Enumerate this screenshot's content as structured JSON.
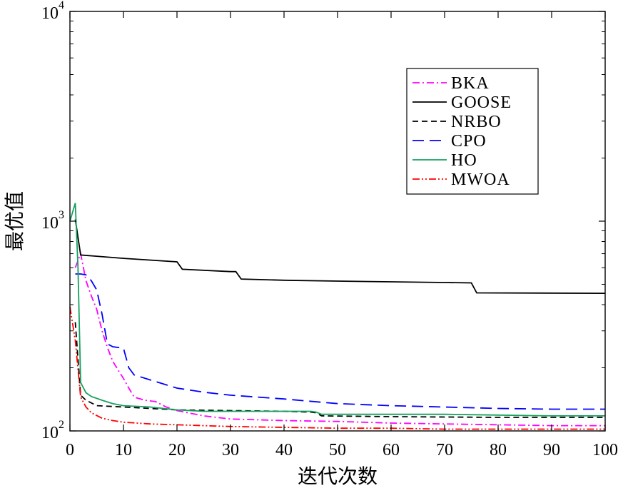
{
  "chart_data": {
    "type": "line",
    "title": "",
    "xlabel": "迭代次数",
    "ylabel": "最优值",
    "xlim": [
      0,
      100
    ],
    "ylim": [
      100,
      10000
    ],
    "yscale": "log",
    "grid": false,
    "legend_position": "top-right",
    "x_ticks": [
      0,
      10,
      20,
      30,
      40,
      50,
      60,
      70,
      80,
      90,
      100
    ],
    "y_ticks": [
      {
        "value": 100,
        "base": "10",
        "exp": "2"
      },
      {
        "value": 1000,
        "base": "10",
        "exp": "3"
      },
      {
        "value": 10000,
        "base": "10",
        "exp": "4"
      }
    ],
    "series": [
      {
        "name": "BKA",
        "color": "#ff00ff",
        "dash": "dashdot",
        "points": [
          [
            1,
            600
          ],
          [
            2,
            700
          ],
          [
            3,
            520
          ],
          [
            4,
            440
          ],
          [
            5,
            380
          ],
          [
            6,
            300
          ],
          [
            7,
            250
          ],
          [
            8,
            215
          ],
          [
            9,
            195
          ],
          [
            10,
            178
          ],
          [
            11,
            160
          ],
          [
            12,
            145
          ],
          [
            14,
            140
          ],
          [
            16,
            138
          ],
          [
            18,
            130
          ],
          [
            20,
            125
          ],
          [
            25,
            118
          ],
          [
            30,
            114
          ],
          [
            40,
            112
          ],
          [
            50,
            111
          ],
          [
            60,
            109
          ],
          [
            70,
            108
          ],
          [
            80,
            107
          ],
          [
            90,
            106
          ],
          [
            100,
            106
          ]
        ]
      },
      {
        "name": "GOOSE",
        "color": "#000000",
        "dash": "solid",
        "points": [
          [
            1,
            1020
          ],
          [
            2,
            690
          ],
          [
            10,
            665
          ],
          [
            20,
            640
          ],
          [
            21,
            590
          ],
          [
            30,
            575
          ],
          [
            31,
            575
          ],
          [
            32,
            530
          ],
          [
            40,
            523
          ],
          [
            50,
            518
          ],
          [
            60,
            514
          ],
          [
            70,
            510
          ],
          [
            75,
            508
          ],
          [
            76,
            455
          ],
          [
            100,
            453
          ]
        ]
      },
      {
        "name": "NRBO",
        "color": "#000000",
        "dash": "dashed",
        "points": [
          [
            1,
            330
          ],
          [
            2,
            148
          ],
          [
            3,
            140
          ],
          [
            5,
            132
          ],
          [
            10,
            130
          ],
          [
            15,
            128
          ],
          [
            20,
            126
          ],
          [
            30,
            125
          ],
          [
            40,
            124
          ],
          [
            45,
            123
          ],
          [
            46,
            122
          ],
          [
            47,
            118
          ],
          [
            60,
            117
          ],
          [
            80,
            116
          ],
          [
            100,
            116
          ]
        ]
      },
      {
        "name": "CPO",
        "color": "#0000ff",
        "dash": "longdash",
        "points": [
          [
            1,
            560
          ],
          [
            2,
            560
          ],
          [
            3,
            555
          ],
          [
            4,
            520
          ],
          [
            5,
            470
          ],
          [
            6,
            360
          ],
          [
            7,
            260
          ],
          [
            8,
            252
          ],
          [
            10,
            248
          ],
          [
            11,
            200
          ],
          [
            12,
            185
          ],
          [
            15,
            175
          ],
          [
            20,
            160
          ],
          [
            25,
            153
          ],
          [
            30,
            148
          ],
          [
            40,
            142
          ],
          [
            47,
            137
          ],
          [
            50,
            135
          ],
          [
            60,
            132
          ],
          [
            70,
            130
          ],
          [
            80,
            128
          ],
          [
            90,
            127
          ],
          [
            100,
            127
          ]
        ]
      },
      {
        "name": "HO",
        "color": "#16a05f",
        "dash": "solid",
        "points": [
          [
            0,
            1000
          ],
          [
            1,
            1220
          ],
          [
            1.5,
            600
          ],
          [
            2,
            170
          ],
          [
            3,
            152
          ],
          [
            4,
            146
          ],
          [
            6,
            140
          ],
          [
            8,
            135
          ],
          [
            10,
            132
          ],
          [
            15,
            130
          ],
          [
            20,
            126
          ],
          [
            25,
            124
          ],
          [
            30,
            124
          ],
          [
            40,
            124
          ],
          [
            45,
            124
          ],
          [
            46,
            123
          ],
          [
            47,
            120
          ],
          [
            50,
            120
          ],
          [
            60,
            120
          ],
          [
            70,
            120
          ],
          [
            80,
            119
          ],
          [
            90,
            118
          ],
          [
            100,
            118
          ]
        ]
      },
      {
        "name": "MWOA",
        "color": "#ff0000",
        "dash": "dashdotdot",
        "points": [
          [
            0,
            390
          ],
          [
            1,
            270
          ],
          [
            2,
            145
          ],
          [
            3,
            130
          ],
          [
            4,
            122
          ],
          [
            6,
            115
          ],
          [
            8,
            112
          ],
          [
            10,
            110
          ],
          [
            15,
            108
          ],
          [
            20,
            107
          ],
          [
            30,
            105
          ],
          [
            40,
            104
          ],
          [
            50,
            103
          ],
          [
            60,
            103
          ],
          [
            70,
            102
          ],
          [
            80,
            102
          ],
          [
            90,
            102
          ],
          [
            100,
            102
          ]
        ]
      }
    ]
  }
}
